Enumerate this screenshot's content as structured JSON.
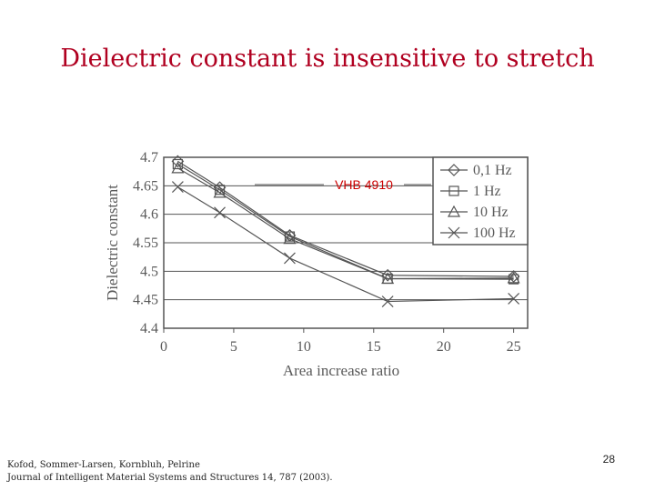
{
  "slide": {
    "title": "Dielectric constant is insensitive to stretch",
    "citation_line1": "Kofod, Sommer-Larsen, Kornbluh, Pelrine",
    "citation_line2": "Journal of Intelligent Material Systems and Structures 14, 787 (2003).",
    "page_number": "28"
  },
  "colors": {
    "title": "#b00020",
    "annotation": "#cc0000",
    "plot": "#555555",
    "grid": "#555555"
  },
  "chart_data": {
    "type": "line",
    "title": "",
    "xlabel": "Area increase ratio",
    "ylabel": "Dielectric constant",
    "xlim": [
      0,
      26
    ],
    "ylim": [
      4.4,
      4.7
    ],
    "x_ticks": [
      0,
      5,
      10,
      15,
      20,
      25
    ],
    "x_tick_labels": [
      "0",
      "5",
      "10",
      "15",
      "20",
      "25"
    ],
    "y_ticks": [
      4.4,
      4.45,
      4.5,
      4.55,
      4.6,
      4.65,
      4.7
    ],
    "y_tick_labels": [
      "4.4",
      "4.45",
      "4.5",
      "4.55",
      "4.6",
      "4.65",
      "4.7"
    ],
    "grid": "horizontal",
    "legend_position": "top-right",
    "annotation": "VHB 4910",
    "series": [
      {
        "name": "0,1 Hz",
        "marker": "diamond",
        "x": [
          1,
          4,
          9,
          16,
          25
        ],
        "y": [
          4.693,
          4.647,
          4.563,
          4.493,
          4.491
        ]
      },
      {
        "name": "1 Hz",
        "marker": "square",
        "x": [
          1,
          4,
          9,
          16,
          25
        ],
        "y": [
          4.688,
          4.643,
          4.561,
          4.487,
          4.486
        ]
      },
      {
        "name": "10 Hz",
        "marker": "triangle",
        "x": [
          1,
          4,
          9,
          16,
          25
        ],
        "y": [
          4.681,
          4.638,
          4.557,
          4.487,
          4.488
        ]
      },
      {
        "name": "100 Hz",
        "marker": "x",
        "x": [
          1,
          4,
          9,
          16,
          25
        ],
        "y": [
          4.648,
          4.603,
          4.523,
          4.447,
          4.452
        ]
      }
    ]
  }
}
